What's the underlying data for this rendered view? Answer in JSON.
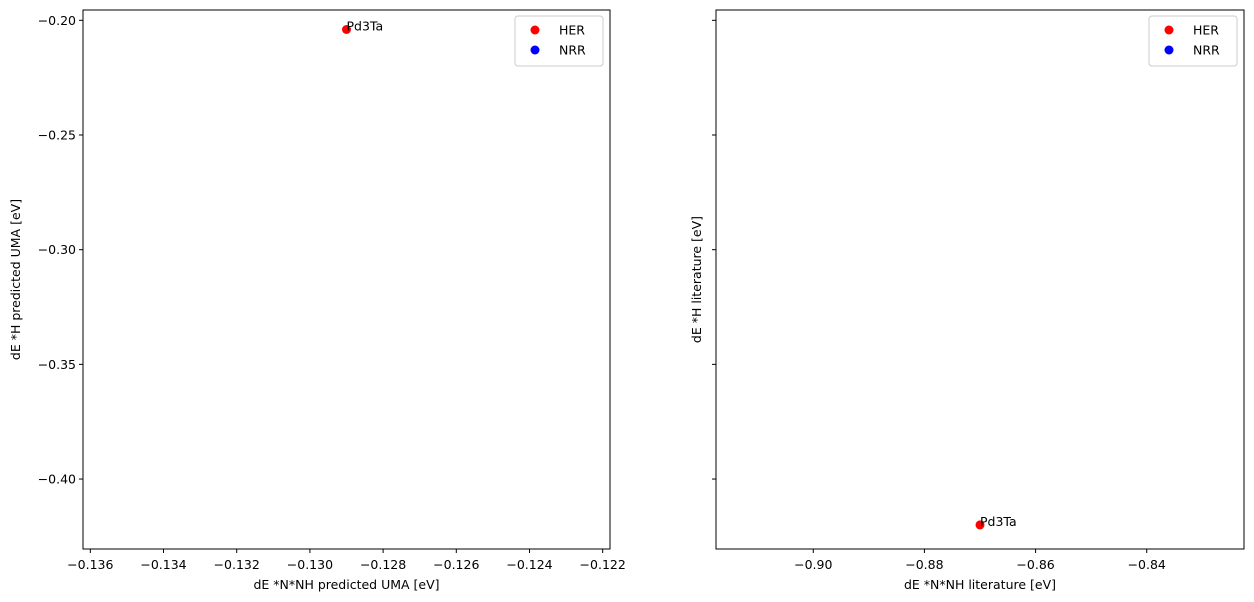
{
  "chart_data": [
    {
      "type": "scatter",
      "title": "",
      "xlabel": "dE *N*NH predicted UMA [eV]",
      "ylabel": "dE *H predicted UMA [eV]",
      "xlim": [
        -0.1362,
        -0.1218
      ],
      "ylim": [
        -0.4305,
        -0.1955
      ],
      "xticks": [
        -0.136,
        -0.134,
        -0.132,
        -0.13,
        -0.128,
        -0.126,
        -0.124,
        -0.122
      ],
      "xtick_labels": [
        "−0.136",
        "−0.134",
        "−0.132",
        "−0.130",
        "−0.128",
        "−0.126",
        "−0.124",
        "−0.122"
      ],
      "yticks": [
        -0.2,
        -0.25,
        -0.3,
        -0.35,
        -0.4
      ],
      "ytick_labels": [
        "−0.20",
        "−0.25",
        "−0.30",
        "−0.35",
        "−0.40"
      ],
      "grid": false,
      "legend": "top-right",
      "series": [
        {
          "name": "HER",
          "color": "#ff0000",
          "points": [
            {
              "x": -0.129,
              "y": -0.204,
              "label": "Pd3Ta"
            }
          ]
        },
        {
          "name": "NRR",
          "color": "#0000ff",
          "points": []
        }
      ]
    },
    {
      "type": "scatter",
      "title": "",
      "xlabel": "dE *N*NH literature [eV]",
      "ylabel": "dE *H literature [eV]",
      "xlim": [
        -0.9175,
        -0.8225
      ],
      "ylim": [
        -0.4305,
        -0.1955
      ],
      "xticks": [
        -0.9,
        -0.88,
        -0.86,
        -0.84
      ],
      "xtick_labels": [
        "−0.90",
        "−0.88",
        "−0.86",
        "−0.84"
      ],
      "yticks": [
        -0.2,
        -0.25,
        -0.3,
        -0.35,
        -0.4
      ],
      "ytick_labels": [],
      "grid": false,
      "legend": "top-right",
      "series": [
        {
          "name": "HER",
          "color": "#ff0000",
          "points": [
            {
              "x": -0.87,
              "y": -0.42,
              "label": "Pd3Ta"
            }
          ]
        },
        {
          "name": "NRR",
          "color": "#0000ff",
          "points": []
        }
      ]
    }
  ]
}
